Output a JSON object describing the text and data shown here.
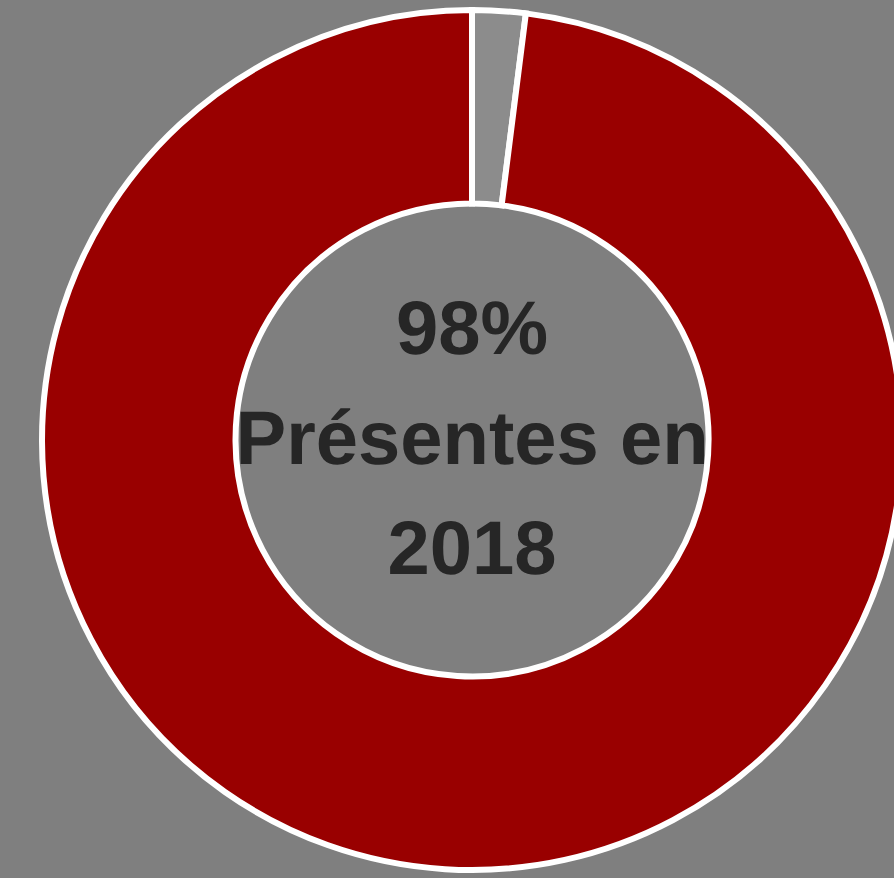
{
  "chart_data": {
    "type": "donut",
    "categories": [
      null,
      null
    ],
    "values": [
      2,
      98
    ],
    "colors": [
      "#8c8c8c",
      "#990000"
    ],
    "annotations": [
      "98%",
      "Présentes en",
      "2018"
    ]
  }
}
